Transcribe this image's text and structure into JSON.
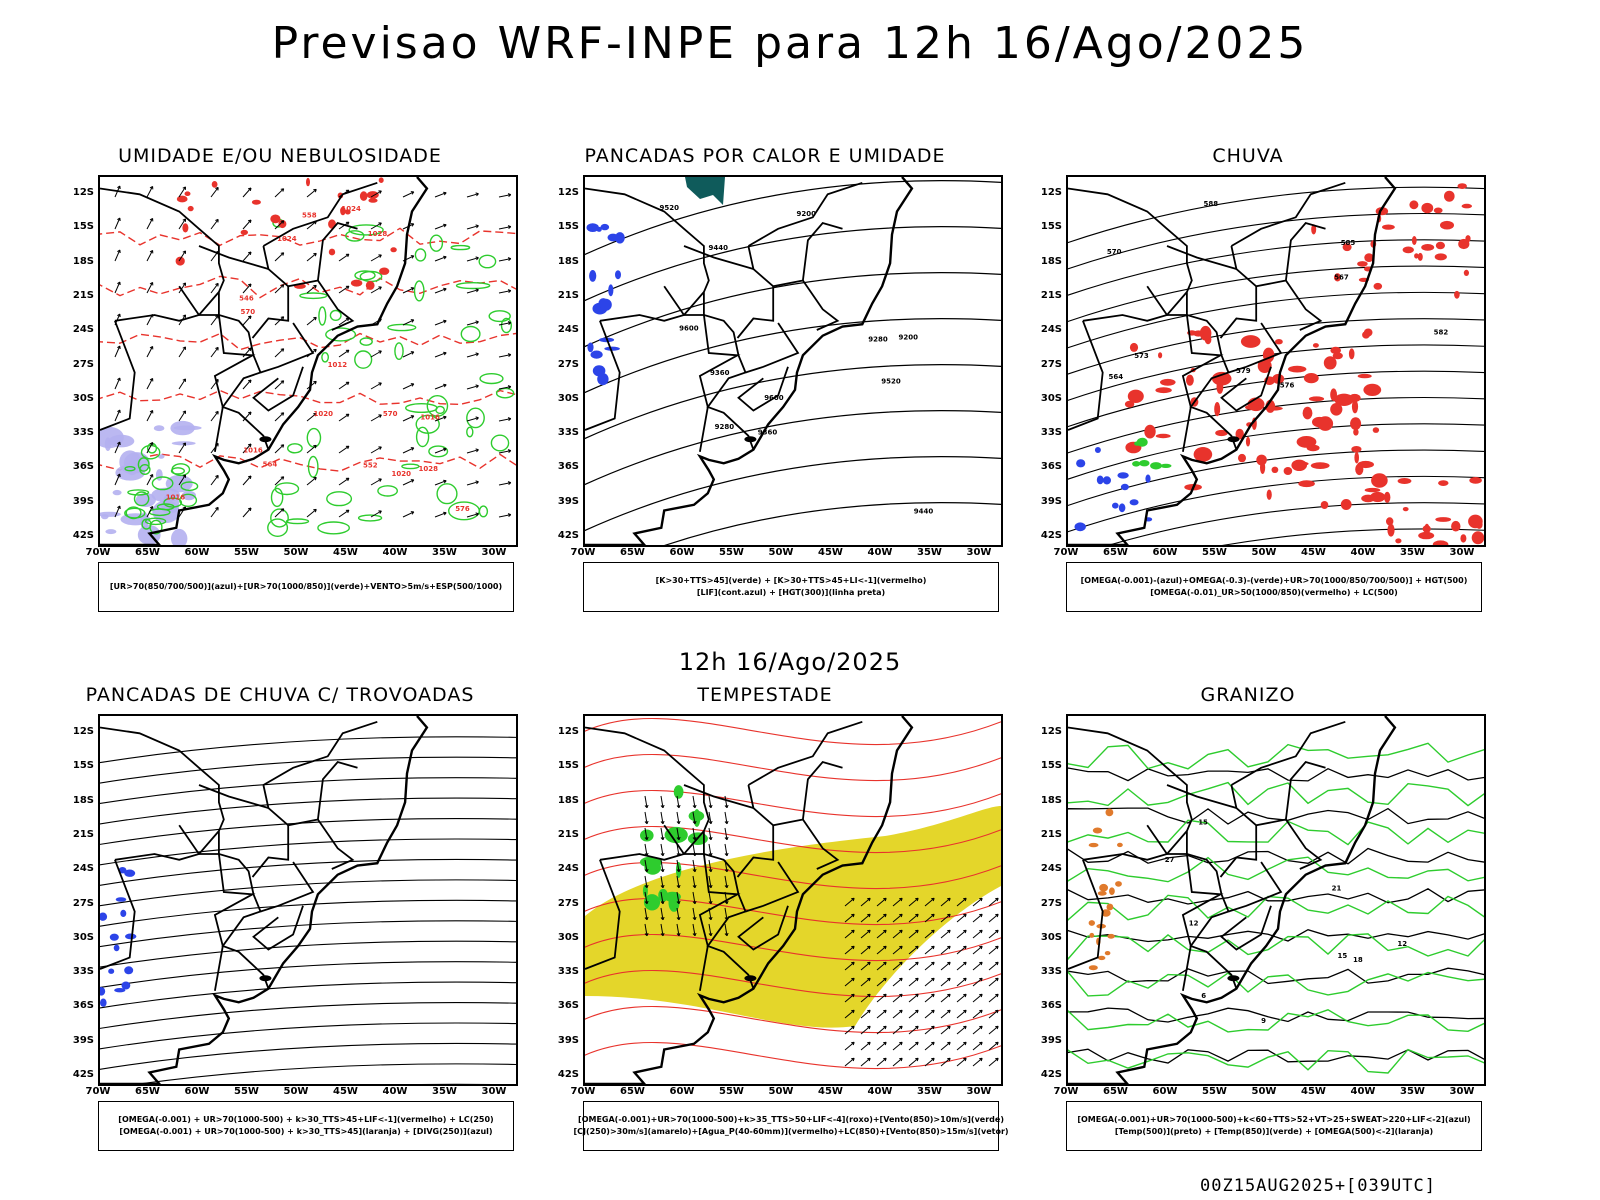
{
  "header": {
    "title": "Previsao WRF-INPE  para 12h 16/Ago/2025"
  },
  "middle": {
    "title": "12h 16/Ago/2025"
  },
  "footer": {
    "stamp": "00Z15AUG2025+[039UTC]"
  },
  "axes": {
    "lat_labels": [
      "12S",
      "15S",
      "18S",
      "21S",
      "24S",
      "27S",
      "30S",
      "33S",
      "36S",
      "39S",
      "42S"
    ],
    "lon_labels": [
      "70W",
      "65W",
      "60W",
      "55W",
      "50W",
      "45W",
      "40W",
      "35W",
      "30W"
    ]
  },
  "colors": {
    "contour_black": "#000000",
    "contour_red": "#e8332c",
    "green": "#2ecc2e",
    "blue": "#2c44e8",
    "lavender": "#b4b0f0",
    "yellow": "#e4d62a",
    "teal": "#0f5b5b"
  },
  "panels": [
    {
      "id": "umidade",
      "title": "UMIDADE E/OU NEBULOSIDADE",
      "legend": [
        "[UR>70(850/700/500)](azul)+[UR>70(1000/850)](verde)+VENTO>5m/s+ESP(500/1000)"
      ],
      "labels": [
        "1016",
        "1016",
        "1012",
        "1020",
        "1024",
        "1024",
        "1028",
        "1028",
        "1020",
        "1016",
        "576",
        "570",
        "564",
        "558",
        "552",
        "546",
        "570"
      ]
    },
    {
      "id": "pancadas-calor",
      "title": "PANCADAS POR CALOR E UMIDADE",
      "legend": [
        "[K>30+TTS>45](verde) + [K>30+TTS>45+LI<-1](vermelho)",
        "[LIF](cont.azul) + [HGT(300)](linha preta)"
      ],
      "labels": [
        "9600",
        "9600",
        "9520",
        "9520",
        "9440",
        "9440",
        "9360",
        "9360",
        "9280",
        "9280",
        "9200",
        "9200"
      ]
    },
    {
      "id": "chuva",
      "title": "CHUVA",
      "legend": [
        "[OMEGA(-0.001)-(azul)+OMEGA(-0.3)-(verde)+UR>70(1000/850/700/500)] + HGT(500)",
        "[OMEGA(-0.01)_UR>50(1000/850)(vermelho) + LC(500)"
      ],
      "labels": [
        "588",
        "585",
        "582",
        "579",
        "576",
        "573",
        "570",
        "567",
        "564"
      ]
    },
    {
      "id": "pancadas-trovoadas",
      "title": "PANCADAS DE CHUVA C/ TROVOADAS",
      "legend": [
        "[OMEGA(-0.001) + UR>70(1000-500) + k>30_TTS>45+LIF<-1](vermelho) + LC(250)",
        "[OMEGA(-0.001) + UR>70(1000-500) + k>30_TTS>45](laranja) + [DIVG(250)](azul)"
      ],
      "labels": []
    },
    {
      "id": "tempestade",
      "title": "TEMPESTADE",
      "legend": [
        "[OMEGA(-0.001)+UR>70(1000-500)+k>35_TTS>50+LIF<-4](roxo)+[Vento(850)>10m/s](verde)",
        "[CJ(250)>30m/s](amarelo)+[Agua_P(40-60mm)](vermelho)+LC(850)+[Vento(850)>15m/s](vetor)"
      ],
      "labels": []
    },
    {
      "id": "granizo",
      "title": "GRANIZO",
      "legend": [
        "[OMEGA(-0.001)+UR>70(1000-500)+k<60+TTS>52+VT>25+SWEAT>220+LIF<-2](azul)",
        "[Temp(500)](preto) + [Temp(850)](verde) + [OMEGA(500)<-2](laranja)"
      ],
      "labels": [
        "6",
        "9",
        "12",
        "12",
        "15",
        "15",
        "18",
        "21",
        "27"
      ]
    }
  ]
}
